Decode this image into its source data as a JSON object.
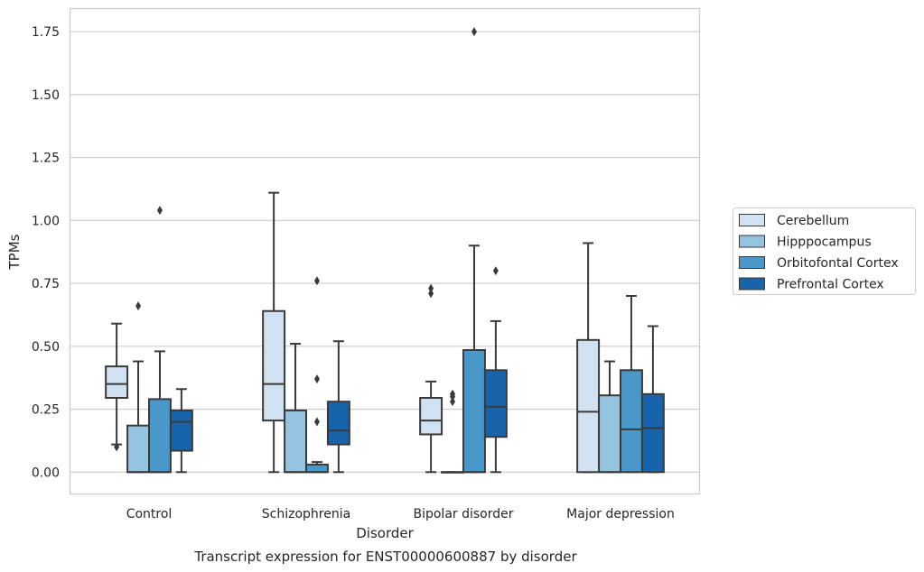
{
  "chart_data": {
    "type": "box",
    "caption": "Transcript expression for ENST00000600887 by disorder",
    "xlabel": "Disorder",
    "ylabel": "TPMs",
    "ylim": [
      -0.085,
      1.84
    ],
    "yticks": [
      "0.00",
      "0.25",
      "0.50",
      "0.75",
      "1.00",
      "1.25",
      "1.50",
      "1.75"
    ],
    "ytick_values": [
      0,
      0.25,
      0.5,
      0.75,
      1.0,
      1.25,
      1.5,
      1.75
    ],
    "grid": "horizontal",
    "legend_position": "right",
    "categories": [
      "Control",
      "Schizophrenia",
      "Bipolar disorder",
      "Major depression"
    ],
    "series": [
      {
        "name": "Cerebellum",
        "color": "#d0e1f2",
        "boxes": [
          {
            "whisker_low": 0.11,
            "q1": 0.295,
            "median": 0.35,
            "q3": 0.42,
            "whisker_high": 0.59,
            "outliers": [
              0.1
            ]
          },
          {
            "whisker_low": 0.0,
            "q1": 0.205,
            "median": 0.35,
            "q3": 0.64,
            "whisker_high": 1.11,
            "outliers": []
          },
          {
            "whisker_low": 0.0,
            "q1": 0.15,
            "median": 0.205,
            "q3": 0.295,
            "whisker_high": 0.36,
            "outliers": [
              0.71,
              0.73
            ]
          },
          {
            "whisker_low": 0.0,
            "q1": 0.0,
            "median": 0.24,
            "q3": 0.525,
            "whisker_high": 0.91,
            "outliers": []
          }
        ]
      },
      {
        "name": "Hipppocampus",
        "color": "#94c4df",
        "boxes": [
          {
            "whisker_low": 0.0,
            "q1": 0.0,
            "median": 0.0,
            "q3": 0.185,
            "whisker_high": 0.44,
            "outliers": [
              0.66
            ]
          },
          {
            "whisker_low": 0.0,
            "q1": 0.0,
            "median": 0.0,
            "q3": 0.245,
            "whisker_high": 0.51,
            "outliers": []
          },
          {
            "whisker_low": 0.0,
            "q1": 0.0,
            "median": 0.0,
            "q3": 0.0,
            "whisker_high": 0.0,
            "outliers": [
              0.28,
              0.3,
              0.31
            ]
          },
          {
            "whisker_low": 0.0,
            "q1": 0.0,
            "median": 0.0,
            "q3": 0.305,
            "whisker_high": 0.44,
            "outliers": []
          }
        ]
      },
      {
        "name": "Orbitofontal Cortex",
        "color": "#4a98c9",
        "boxes": [
          {
            "whisker_low": 0.0,
            "q1": 0.0,
            "median": 0.0,
            "q3": 0.29,
            "whisker_high": 0.48,
            "outliers": [
              1.04
            ]
          },
          {
            "whisker_low": 0.0,
            "q1": 0.0,
            "median": 0.0,
            "q3": 0.03,
            "whisker_high": 0.04,
            "outliers": [
              0.2,
              0.37,
              0.76
            ]
          },
          {
            "whisker_low": 0.0,
            "q1": 0.0,
            "median": 0.0,
            "q3": 0.485,
            "whisker_high": 0.9,
            "outliers": [
              1.75
            ]
          },
          {
            "whisker_low": 0.0,
            "q1": 0.0,
            "median": 0.17,
            "q3": 0.405,
            "whisker_high": 0.7,
            "outliers": []
          }
        ]
      },
      {
        "name": "Prefrontal Cortex",
        "color": "#1764ab",
        "boxes": [
          {
            "whisker_low": 0.0,
            "q1": 0.085,
            "median": 0.2,
            "q3": 0.245,
            "whisker_high": 0.33,
            "outliers": []
          },
          {
            "whisker_low": 0.0,
            "q1": 0.11,
            "median": 0.165,
            "q3": 0.28,
            "whisker_high": 0.52,
            "outliers": []
          },
          {
            "whisker_low": 0.0,
            "q1": 0.14,
            "median": 0.26,
            "q3": 0.405,
            "whisker_high": 0.6,
            "outliers": [
              0.8
            ]
          },
          {
            "whisker_low": 0.0,
            "q1": 0.0,
            "median": 0.175,
            "q3": 0.31,
            "whisker_high": 0.58,
            "outliers": []
          }
        ]
      }
    ]
  }
}
